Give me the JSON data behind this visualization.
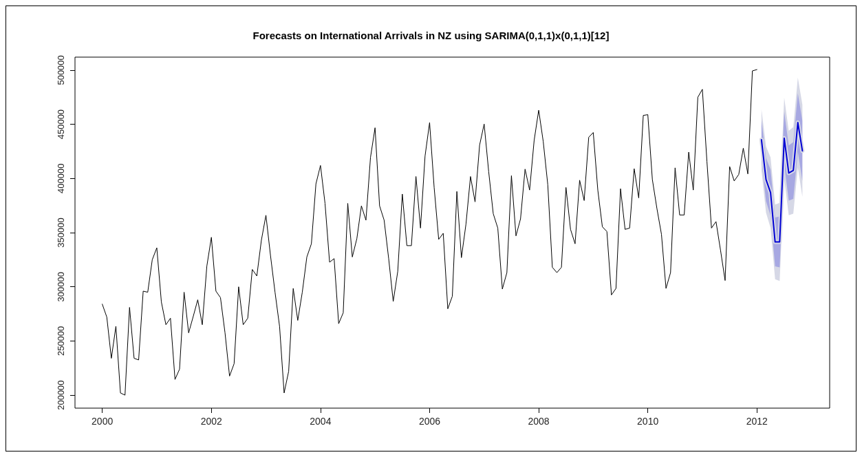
{
  "chart_data": {
    "type": "line",
    "title": "Forecasts on International Arrivals in NZ using SARIMA(0,1,1)x(0,1,1)[12]",
    "xlim": [
      "1999-07",
      "2013-05"
    ],
    "xticks": [
      "2000",
      "2002",
      "2004",
      "2006",
      "2008",
      "2010",
      "2012"
    ],
    "ylim": [
      188000,
      512000
    ],
    "yticks": [
      200000,
      250000,
      300000,
      350000,
      400000,
      450000,
      500000
    ],
    "grid": false,
    "marker": "none",
    "line_style": "solid",
    "series": [
      {
        "color": "#000000",
        "x": [
          "2000-01",
          "2000-02",
          "2000-03",
          "2000-04",
          "2000-05",
          "2000-06",
          "2000-07",
          "2000-08",
          "2000-09",
          "2000-10",
          "2000-11",
          "2000-12",
          "2001-01",
          "2001-02",
          "2001-03",
          "2001-04",
          "2001-05",
          "2001-06",
          "2001-07",
          "2001-08",
          "2001-09",
          "2001-10",
          "2001-11",
          "2001-12",
          "2002-01",
          "2002-02",
          "2002-03",
          "2002-04",
          "2002-05",
          "2002-06",
          "2002-07",
          "2002-08",
          "2002-09",
          "2002-10",
          "2002-11",
          "2002-12",
          "2003-01",
          "2003-02",
          "2003-03",
          "2003-04",
          "2003-05",
          "2003-06",
          "2003-07",
          "2003-08",
          "2003-09",
          "2003-10",
          "2003-11",
          "2003-12",
          "2004-01",
          "2004-02",
          "2004-03",
          "2004-04",
          "2004-05",
          "2004-06",
          "2004-07",
          "2004-08",
          "2004-09",
          "2004-10",
          "2004-11",
          "2004-12",
          "2005-01",
          "2005-02",
          "2005-03",
          "2005-04",
          "2005-05",
          "2005-06",
          "2005-07",
          "2005-08",
          "2005-09",
          "2005-10",
          "2005-11",
          "2005-12",
          "2006-01",
          "2006-02",
          "2006-03",
          "2006-04",
          "2006-05",
          "2006-06",
          "2006-07",
          "2006-08",
          "2006-09",
          "2006-10",
          "2006-11",
          "2006-12",
          "2007-01",
          "2007-02",
          "2007-03",
          "2007-04",
          "2007-05",
          "2007-06",
          "2007-07",
          "2007-08",
          "2007-09",
          "2007-10",
          "2007-11",
          "2007-12",
          "2008-01",
          "2008-02",
          "2008-03",
          "2008-04",
          "2008-05",
          "2008-06",
          "2008-07",
          "2008-08",
          "2008-09",
          "2008-10",
          "2008-11",
          "2008-12",
          "2009-01",
          "2009-02",
          "2009-03",
          "2009-04",
          "2009-05",
          "2009-06",
          "2009-07",
          "2009-08",
          "2009-09",
          "2009-10",
          "2009-11",
          "2009-12",
          "2010-01",
          "2010-02",
          "2010-03",
          "2010-04",
          "2010-05",
          "2010-06",
          "2010-07",
          "2010-08",
          "2010-09",
          "2010-10",
          "2010-11",
          "2010-12",
          "2011-01",
          "2011-02",
          "2011-03",
          "2011-04",
          "2011-05",
          "2011-06",
          "2011-07",
          "2011-08",
          "2011-09",
          "2011-10",
          "2011-11",
          "2011-12",
          "2012-01"
        ],
        "values": [
          284000,
          272000,
          234000,
          263500,
          202000,
          200000,
          281000,
          234000,
          232500,
          296000,
          295000,
          325000,
          336000,
          286000,
          265000,
          271000,
          214500,
          224000,
          295000,
          257500,
          272500,
          288000,
          265000,
          319000,
          345700,
          296000,
          290000,
          257500,
          217600,
          229000,
          300000,
          265000,
          271000,
          316000,
          310000,
          343000,
          366000,
          329000,
          295000,
          263500,
          202000,
          222000,
          298500,
          269000,
          295000,
          327500,
          339700,
          395000,
          412000,
          377000,
          322700,
          326000,
          266000,
          276000,
          377000,
          327500,
          344500,
          374700,
          361500,
          419500,
          446800,
          374700,
          361500,
          326000,
          286500,
          314300,
          385600,
          338000,
          338000,
          401800,
          354200,
          420700,
          451600,
          391700,
          343800,
          349400,
          279700,
          291300,
          388000,
          326900,
          357800,
          401800,
          378400,
          430800,
          450200,
          406200,
          367500,
          354200,
          297900,
          313100,
          402600,
          347000,
          362700,
          408600,
          389300,
          435200,
          463000,
          434000,
          394100,
          318000,
          313100,
          318000,
          391700,
          353000,
          339700,
          398400,
          379600,
          438000,
          442400,
          389300,
          355400,
          351000,
          292500,
          298500,
          390500,
          353000,
          354200,
          409000,
          382000,
          458200,
          458900,
          399000,
          372300,
          348500,
          298500,
          313100,
          409800,
          366300,
          366300,
          424300,
          389300,
          475000,
          482300,
          415900,
          354200,
          360200,
          333600,
          305800,
          411000,
          397700,
          403700,
          427900,
          404200,
          499300,
          500500
        ]
      },
      {
        "color": "#d6d8e6",
        "x": [
          "2012-02",
          "2012-03",
          "2012-04",
          "2012-05",
          "2012-06",
          "2012-07",
          "2012-08",
          "2012-09",
          "2012-10",
          "2012-11"
        ],
        "values": [
          435700,
          399000,
          386900,
          341400,
          341400,
          437200,
          405000,
          407400,
          451600,
          425500
        ],
        "lower": [
          407700,
          368500,
          354400,
          306900,
          305400,
          399700,
          366000,
          367400,
          410100,
          383000
        ],
        "upper": [
          463700,
          429500,
          419400,
          375900,
          377400,
          474700,
          444000,
          447400,
          493100,
          468000
        ]
      },
      {
        "color": "#0000d4",
        "x": [
          "2012-02",
          "2012-03",
          "2012-04",
          "2012-05",
          "2012-06",
          "2012-07",
          "2012-08",
          "2012-09",
          "2012-10",
          "2012-11"
        ],
        "values": [
          435700,
          399000,
          386900,
          341400,
          341400,
          437200,
          405000,
          407400,
          451600,
          425500
        ],
        "lower": [
          417400,
          379000,
          365600,
          318800,
          317900,
          412700,
          379500,
          381200,
          424500,
          397700
        ],
        "upper": [
          454000,
          419000,
          408200,
          364000,
          364900,
          461700,
          430500,
          433600,
          478700,
          453300
        ]
      }
    ]
  }
}
